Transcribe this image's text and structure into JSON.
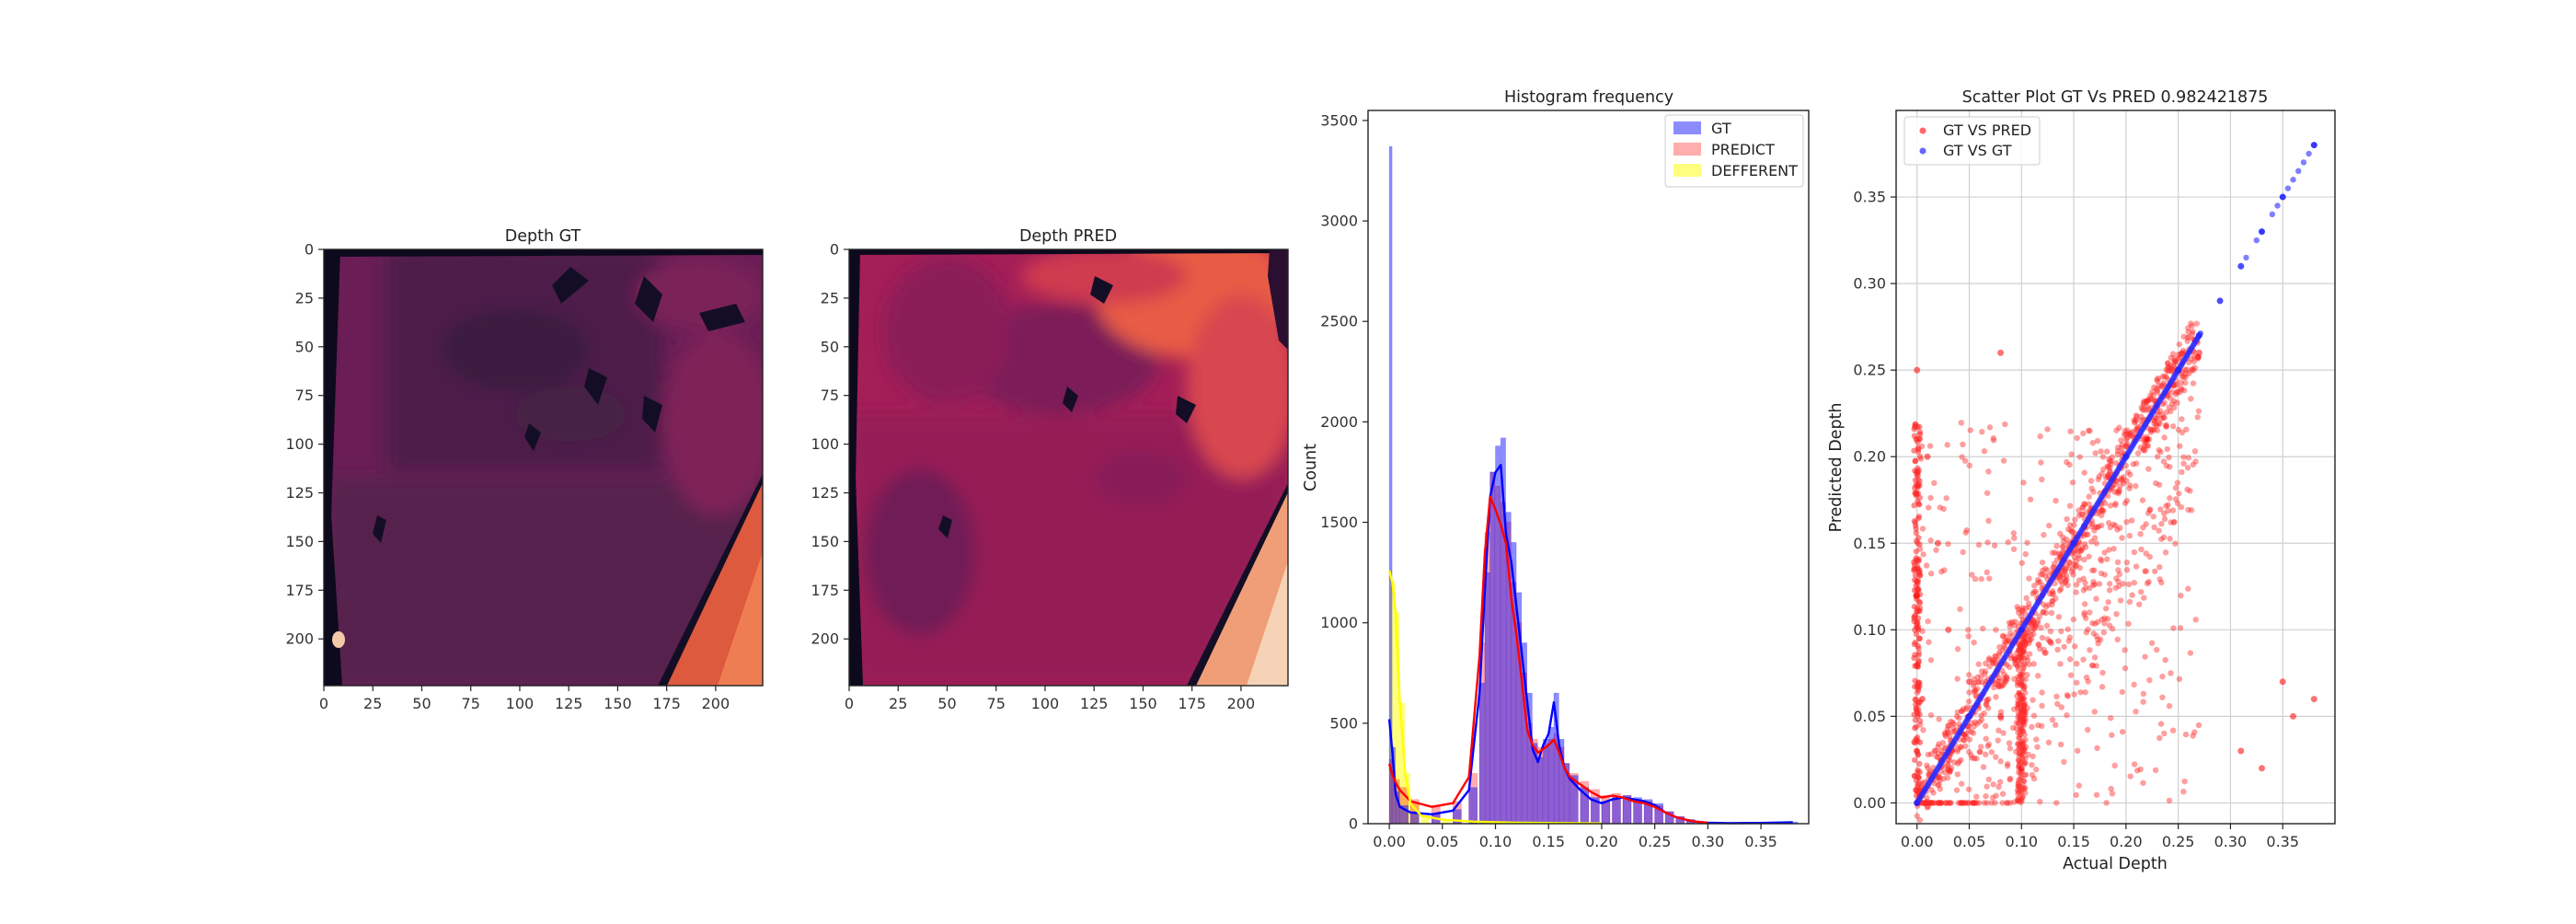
{
  "chart_data": [
    {
      "type": "heatmap",
      "title": "Depth GT",
      "xlim": [
        0,
        224
      ],
      "ylim": [
        224,
        0
      ],
      "xticks": [
        0,
        25,
        50,
        75,
        100,
        125,
        150,
        175,
        200
      ],
      "yticks": [
        0,
        25,
        50,
        75,
        100,
        125,
        150,
        175,
        200
      ],
      "colormap": "rocket"
    },
    {
      "type": "heatmap",
      "title": "Depth PRED",
      "xlim": [
        0,
        224
      ],
      "ylim": [
        224,
        0
      ],
      "xticks": [
        0,
        25,
        50,
        75,
        100,
        125,
        150,
        175,
        200
      ],
      "yticks": [
        0,
        25,
        50,
        75,
        100,
        125,
        150,
        175,
        200
      ],
      "colormap": "rocket"
    },
    {
      "type": "bar",
      "title": "Histogram frequency",
      "xlabel": "",
      "ylabel": "Count",
      "xlim": [
        -0.02,
        0.395
      ],
      "ylim": [
        0,
        3550
      ],
      "xticks": [
        0.0,
        0.05,
        0.1,
        0.15,
        0.2,
        0.25,
        0.3,
        0.35
      ],
      "yticks": [
        0,
        500,
        1000,
        1500,
        2000,
        2500,
        3000,
        3500
      ],
      "legend": {
        "position": "top-right"
      },
      "series": [
        {
          "name": "GT",
          "color": "#0000ff",
          "x": [
            0.0,
            0.003,
            0.006,
            0.01,
            0.02,
            0.04,
            0.06,
            0.075,
            0.085,
            0.09,
            0.095,
            0.1,
            0.105,
            0.11,
            0.115,
            0.12,
            0.125,
            0.13,
            0.135,
            0.14,
            0.145,
            0.15,
            0.155,
            0.16,
            0.165,
            0.17,
            0.18,
            0.19,
            0.2,
            0.21,
            0.22,
            0.23,
            0.24,
            0.25,
            0.26,
            0.27,
            0.28,
            0.29,
            0.3,
            0.32,
            0.35,
            0.38
          ],
          "values": [
            3370,
            380,
            160,
            90,
            60,
            50,
            70,
            180,
            700,
            1250,
            1750,
            1880,
            1920,
            1550,
            1400,
            1150,
            900,
            650,
            400,
            330,
            420,
            480,
            650,
            420,
            300,
            240,
            180,
            130,
            110,
            130,
            140,
            130,
            120,
            100,
            60,
            35,
            20,
            10,
            5,
            3,
            4,
            8
          ]
        },
        {
          "name": "PREDICT",
          "color": "#ff0000",
          "x": [
            0.0,
            0.003,
            0.006,
            0.01,
            0.02,
            0.04,
            0.06,
            0.075,
            0.085,
            0.09,
            0.095,
            0.1,
            0.105,
            0.11,
            0.115,
            0.12,
            0.125,
            0.13,
            0.135,
            0.14,
            0.145,
            0.15,
            0.155,
            0.16,
            0.165,
            0.17,
            0.18,
            0.19,
            0.2,
            0.21,
            0.22,
            0.23,
            0.24,
            0.25,
            0.26,
            0.27,
            0.28,
            0.29,
            0.3
          ],
          "values": [
            320,
            260,
            220,
            180,
            120,
            90,
            110,
            250,
            900,
            1450,
            1750,
            1680,
            1600,
            1500,
            1200,
            1000,
            750,
            500,
            420,
            380,
            400,
            420,
            450,
            380,
            300,
            250,
            210,
            170,
            140,
            150,
            140,
            120,
            110,
            90,
            60,
            35,
            20,
            10,
            5
          ]
        },
        {
          "name": "DEFFERENT",
          "color": "#ffff00",
          "x": [
            0.0,
            0.003,
            0.006,
            0.01,
            0.015,
            0.02,
            0.03,
            0.05,
            0.08,
            0.12,
            0.16,
            0.2
          ],
          "values": [
            1260,
            1200,
            1050,
            600,
            250,
            100,
            40,
            20,
            10,
            5,
            3,
            2
          ]
        }
      ]
    },
    {
      "type": "scatter",
      "title": "Scatter Plot GT Vs PRED 0.982421875",
      "xlabel": "Actual Depth",
      "ylabel": "Predicted Depth",
      "xlim": [
        -0.02,
        0.4
      ],
      "ylim": [
        -0.012,
        0.4
      ],
      "xticks": [
        0.0,
        0.05,
        0.1,
        0.15,
        0.2,
        0.25,
        0.3,
        0.35
      ],
      "yticks": [
        0.0,
        0.05,
        0.1,
        0.15,
        0.2,
        0.25,
        0.3,
        0.35
      ],
      "grid": true,
      "legend": {
        "position": "top-left"
      },
      "series": [
        {
          "name": "GT VS PRED",
          "color": "#ff0000",
          "x": [
            0.0,
            0.0,
            0.0,
            0.005,
            0.01,
            0.02,
            0.03,
            0.05,
            0.08,
            0.08,
            0.1,
            0.1,
            0.12,
            0.14,
            0.15,
            0.16,
            0.18,
            0.2,
            0.22,
            0.25,
            0.27,
            0.31,
            0.33,
            0.35,
            0.36,
            0.38
          ],
          "y": [
            0.0,
            0.25,
            0.12,
            0.06,
            0.2,
            0.15,
            0.1,
            0.07,
            0.26,
            0.05,
            0.1,
            0.02,
            0.12,
            0.14,
            0.15,
            0.16,
            0.18,
            0.2,
            0.21,
            0.25,
            0.26,
            0.03,
            0.02,
            0.07,
            0.05,
            0.06
          ]
        },
        {
          "name": "GT VS GT",
          "color": "#0000ff",
          "x": [
            0.0,
            0.05,
            0.1,
            0.15,
            0.2,
            0.25,
            0.27,
            0.29,
            0.31,
            0.33,
            0.35,
            0.38
          ],
          "y": [
            0.0,
            0.05,
            0.1,
            0.15,
            0.2,
            0.25,
            0.27,
            0.29,
            0.31,
            0.33,
            0.35,
            0.38
          ]
        }
      ]
    }
  ]
}
